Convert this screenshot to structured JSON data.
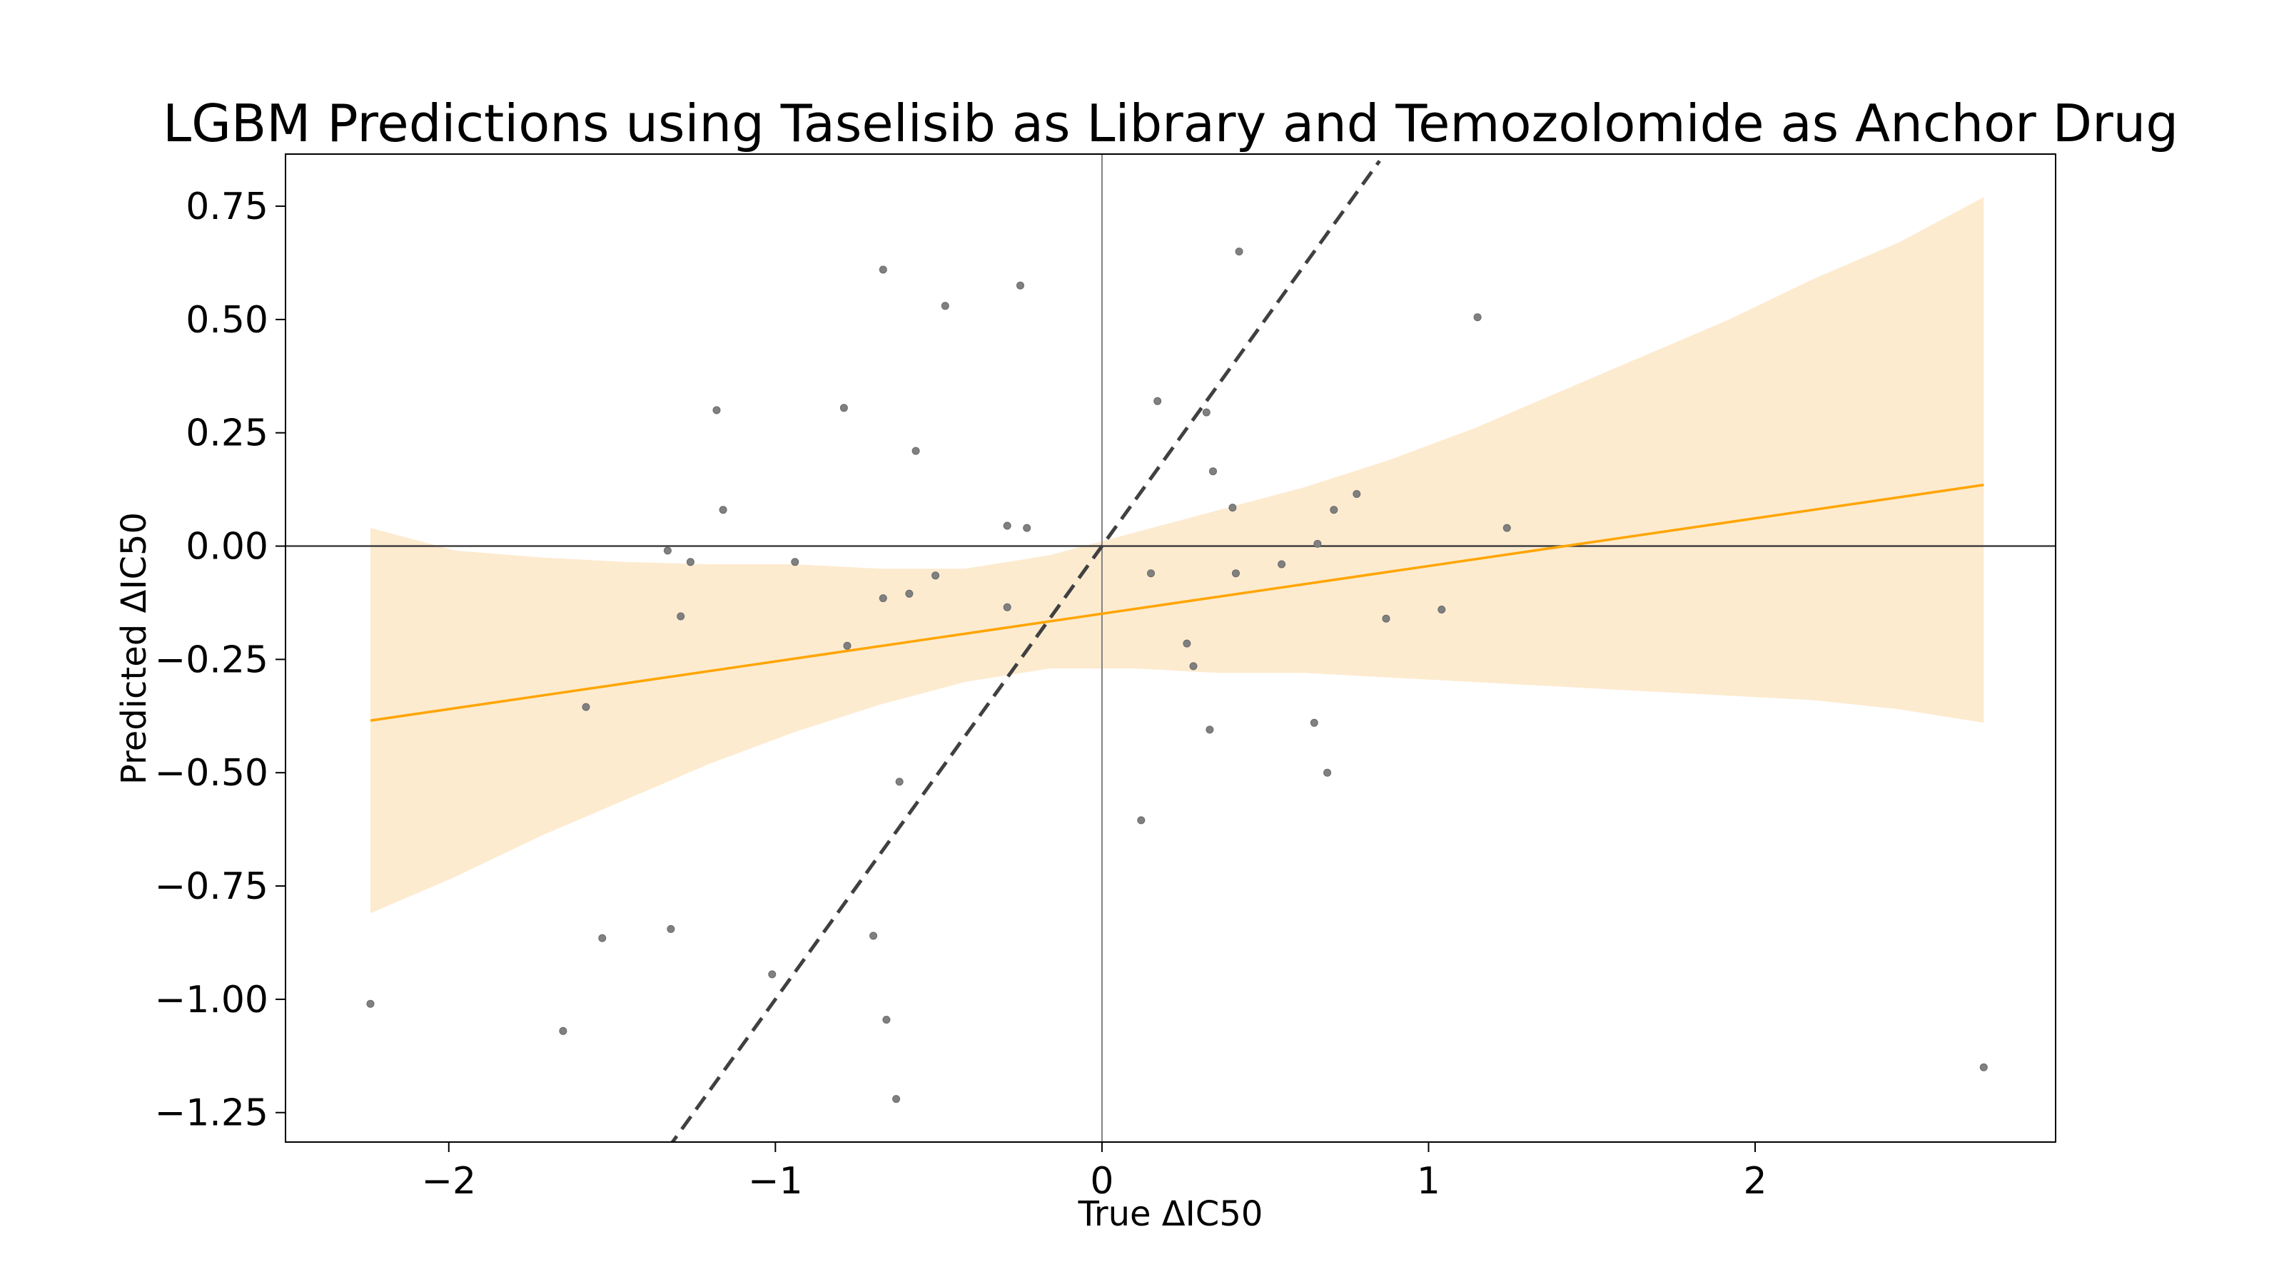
{
  "chart_data": {
    "type": "scatter",
    "title": "LGBM Predictions using Taselisib as Library and Temozolomide as Anchor Drug",
    "xlabel": "True ΔIC50",
    "ylabel": "Predicted ΔIC50",
    "xlim": [
      -2.5,
      2.92
    ],
    "ylim": [
      -1.315,
      0.865
    ],
    "x_ticks": [
      -2,
      -1,
      0,
      1,
      2
    ],
    "x_tick_labels": [
      "−2",
      "−1",
      "0",
      "1",
      "2"
    ],
    "y_ticks": [
      0.75,
      0.5,
      0.25,
      0.0,
      -0.25,
      -0.5,
      -0.75,
      -1.0,
      -1.25
    ],
    "y_tick_labels": [
      "0.75",
      "0.50",
      "0.25",
      "0.00",
      "−0.25",
      "−0.50",
      "−0.75",
      "−1.00",
      "−1.25"
    ],
    "grid": false,
    "colors": {
      "points": "#808080",
      "regression_line": "#FFA500",
      "confidence_band": "#FDEBD0",
      "identity_line": "#404040",
      "zero_lines_v": "#808080",
      "zero_lines_h": "#404040"
    },
    "points": {
      "x": [
        -2.24,
        -1.65,
        -1.58,
        -1.53,
        -1.33,
        -1.32,
        -1.29,
        -1.26,
        -1.18,
        -1.16,
        -1.01,
        -0.94,
        -0.79,
        -0.78,
        -0.7,
        -0.67,
        -0.67,
        -0.66,
        -0.63,
        -0.62,
        -0.59,
        -0.57,
        -0.51,
        -0.48,
        -0.29,
        -0.29,
        -0.25,
        -0.23,
        0.12,
        0.15,
        0.17,
        0.26,
        0.28,
        0.32,
        0.33,
        0.34,
        0.4,
        0.41,
        0.42,
        0.55,
        0.65,
        0.66,
        0.69,
        0.71,
        0.78,
        0.87,
        1.04,
        1.15,
        1.24,
        2.7
      ],
      "y": [
        -1.01,
        -1.07,
        -0.355,
        -0.865,
        -0.01,
        -0.845,
        -0.155,
        -0.035,
        0.3,
        0.08,
        -0.945,
        -0.035,
        0.305,
        -0.22,
        -0.86,
        0.61,
        -0.115,
        -1.045,
        -1.22,
        -0.52,
        -0.105,
        0.21,
        -0.065,
        0.53,
        0.045,
        -0.135,
        0.575,
        0.04,
        -0.605,
        -0.06,
        0.32,
        -0.215,
        -0.265,
        0.295,
        -0.405,
        0.165,
        0.085,
        -0.06,
        0.65,
        -0.04,
        -0.39,
        0.005,
        -0.5,
        0.08,
        0.115,
        -0.16,
        -0.14,
        0.505,
        0.04,
        -1.15
      ]
    },
    "regression_line": {
      "x": [
        -2.24,
        2.7
      ],
      "y": [
        -0.385,
        0.135
      ]
    },
    "confidence_band": {
      "x": [
        -2.24,
        -1.98,
        -1.72,
        -1.46,
        -1.2,
        -0.94,
        -0.68,
        -0.42,
        -0.16,
        0.1,
        0.36,
        0.62,
        0.88,
        1.14,
        1.4,
        1.66,
        1.92,
        2.18,
        2.44,
        2.7
      ],
      "upper": [
        0.04,
        -0.01,
        -0.025,
        -0.035,
        -0.04,
        -0.04,
        -0.05,
        -0.05,
        -0.02,
        0.03,
        0.08,
        0.13,
        0.19,
        0.26,
        0.34,
        0.42,
        0.5,
        0.59,
        0.67,
        0.77
      ],
      "lower": [
        -0.81,
        -0.73,
        -0.64,
        -0.56,
        -0.48,
        -0.41,
        -0.35,
        -0.3,
        -0.27,
        -0.27,
        -0.28,
        -0.28,
        -0.29,
        -0.3,
        -0.31,
        -0.32,
        -0.33,
        -0.34,
        -0.36,
        -0.39
      ]
    },
    "identity_line": {
      "x": [
        -1.33,
        0.85
      ],
      "y": [
        -1.33,
        0.85
      ]
    }
  }
}
